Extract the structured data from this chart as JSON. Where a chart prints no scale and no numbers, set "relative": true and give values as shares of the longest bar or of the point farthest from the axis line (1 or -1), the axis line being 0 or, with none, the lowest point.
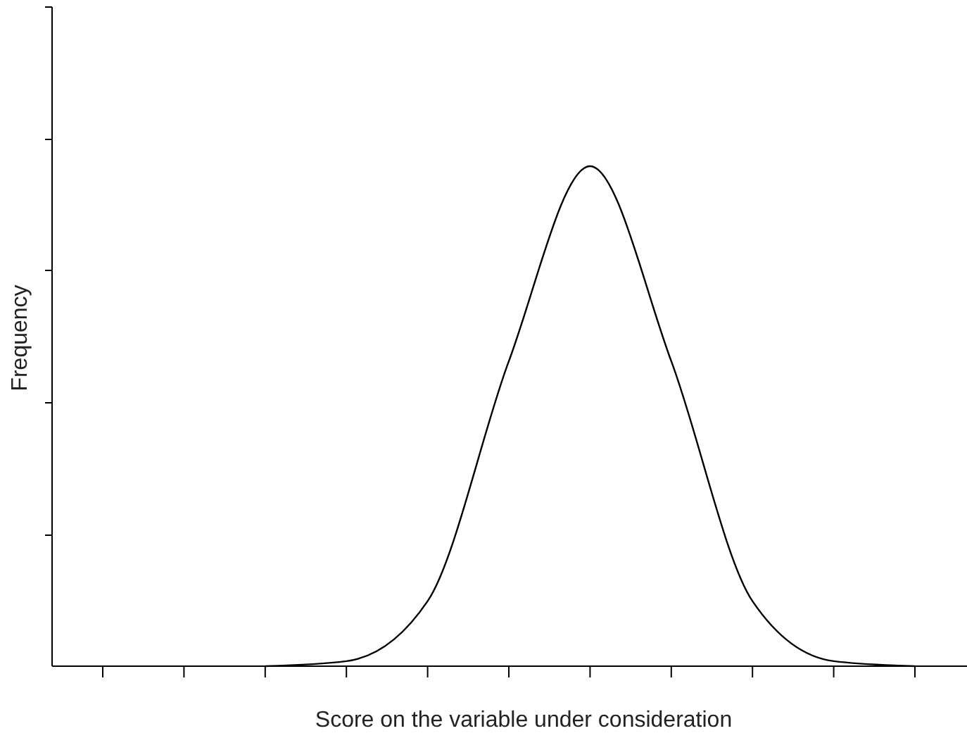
{
  "chart_data": {
    "type": "line",
    "relative": true,
    "xlabel": "Score on the variable under consideration",
    "ylabel": "Frequency",
    "categories": [
      null,
      null,
      null,
      null,
      null,
      null,
      null,
      null,
      null,
      null,
      null
    ],
    "series": [
      {
        "color": "#000000",
        "values": [
          null,
          null,
          0,
          0.01,
          0.13,
          0.61,
          1,
          0.61,
          0.13,
          0.01,
          0
        ]
      }
    ],
    "marker": "none",
    "line_style": "solid",
    "grid": false
  }
}
